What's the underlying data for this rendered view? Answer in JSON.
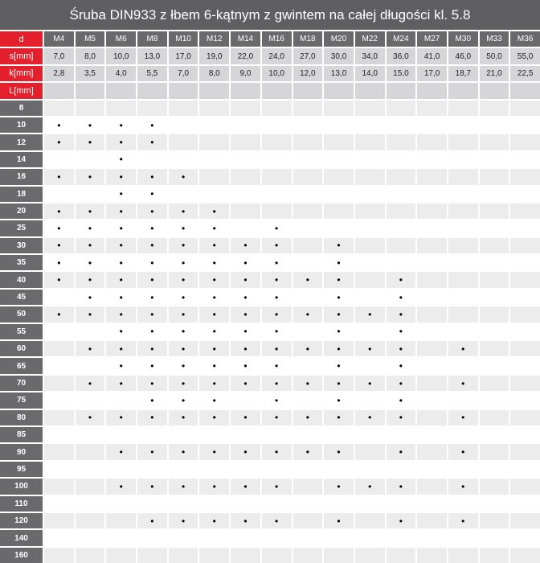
{
  "title": "Śruba DIN933 z łbem 6-kątnym z gwintem na całej długości kl. 5.8",
  "labels": {
    "d": "d",
    "s": "s[mm]",
    "k": "k[mm]",
    "L": "L[mm]"
  },
  "sizes": [
    "M4",
    "M5",
    "M6",
    "M8",
    "M10",
    "M12",
    "M14",
    "M16",
    "M18",
    "M20",
    "M22",
    "M24",
    "M27",
    "M30",
    "M33",
    "M36"
  ],
  "s_mm": [
    "7,0",
    "8,0",
    "10,0",
    "13,0",
    "17,0",
    "19,0",
    "22,0",
    "24,0",
    "27,0",
    "30,0",
    "34,0",
    "36,0",
    "41,0",
    "46,0",
    "50,0",
    "55,0"
  ],
  "k_mm": [
    "2,8",
    "3,5",
    "4,0",
    "5,5",
    "7,0",
    "8,0",
    "9,0",
    "10,0",
    "12,0",
    "13,0",
    "14,0",
    "15,0",
    "17,0",
    "18,7",
    "21,0",
    "22,5"
  ],
  "mark": "•",
  "lengths": [
    {
      "L": "8",
      "available": []
    },
    {
      "L": "10",
      "available": [
        "M4",
        "M5",
        "M6",
        "M8"
      ]
    },
    {
      "L": "12",
      "available": [
        "M4",
        "M5",
        "M6",
        "M8"
      ]
    },
    {
      "L": "14",
      "available": [
        "M6"
      ]
    },
    {
      "L": "16",
      "available": [
        "M4",
        "M5",
        "M6",
        "M8",
        "M10"
      ]
    },
    {
      "L": "18",
      "available": [
        "M6",
        "M8"
      ]
    },
    {
      "L": "20",
      "available": [
        "M4",
        "M5",
        "M6",
        "M8",
        "M10",
        "M12"
      ]
    },
    {
      "L": "25",
      "available": [
        "M4",
        "M5",
        "M6",
        "M8",
        "M10",
        "M12",
        "M16"
      ]
    },
    {
      "L": "30",
      "available": [
        "M4",
        "M5",
        "M6",
        "M8",
        "M10",
        "M12",
        "M14",
        "M16",
        "M20"
      ]
    },
    {
      "L": "35",
      "available": [
        "M4",
        "M5",
        "M6",
        "M8",
        "M10",
        "M12",
        "M14",
        "M16",
        "M20"
      ]
    },
    {
      "L": "40",
      "available": [
        "M4",
        "M5",
        "M6",
        "M8",
        "M10",
        "M12",
        "M14",
        "M16",
        "M18",
        "M20",
        "M24"
      ]
    },
    {
      "L": "45",
      "available": [
        "M5",
        "M6",
        "M8",
        "M10",
        "M12",
        "M14",
        "M16",
        "M20",
        "M24"
      ]
    },
    {
      "L": "50",
      "available": [
        "M4",
        "M5",
        "M6",
        "M8",
        "M10",
        "M12",
        "M14",
        "M16",
        "M18",
        "M20",
        "M22",
        "M24"
      ]
    },
    {
      "L": "55",
      "available": [
        "M6",
        "M8",
        "M10",
        "M12",
        "M14",
        "M16",
        "M20",
        "M24"
      ]
    },
    {
      "L": "60",
      "available": [
        "M5",
        "M6",
        "M8",
        "M10",
        "M12",
        "M14",
        "M16",
        "M18",
        "M20",
        "M22",
        "M24",
        "M30"
      ]
    },
    {
      "L": "65",
      "available": [
        "M6",
        "M8",
        "M10",
        "M12",
        "M14",
        "M16",
        "M20",
        "M24"
      ]
    },
    {
      "L": "70",
      "available": [
        "M5",
        "M6",
        "M8",
        "M10",
        "M12",
        "M14",
        "M16",
        "M18",
        "M20",
        "M22",
        "M24",
        "M30"
      ]
    },
    {
      "L": "75",
      "available": [
        "M8",
        "M10",
        "M12",
        "M16",
        "M20",
        "M24"
      ]
    },
    {
      "L": "80",
      "available": [
        "M5",
        "M6",
        "M8",
        "M10",
        "M12",
        "M14",
        "M16",
        "M18",
        "M20",
        "M22",
        "M24",
        "M30"
      ]
    },
    {
      "L": "85",
      "available": []
    },
    {
      "L": "90",
      "available": [
        "M6",
        "M8",
        "M10",
        "M12",
        "M14",
        "M16",
        "M18",
        "M20",
        "M24",
        "M30"
      ]
    },
    {
      "L": "95",
      "available": []
    },
    {
      "L": "100",
      "available": [
        "M6",
        "M8",
        "M10",
        "M12",
        "M14",
        "M16",
        "M20",
        "M22",
        "M24",
        "M30"
      ]
    },
    {
      "L": "110",
      "available": []
    },
    {
      "L": "120",
      "available": [
        "M8",
        "M10",
        "M12",
        "M14",
        "M16",
        "M20",
        "M24",
        "M30"
      ]
    },
    {
      "L": "140",
      "available": []
    },
    {
      "L": "160",
      "available": []
    }
  ]
}
